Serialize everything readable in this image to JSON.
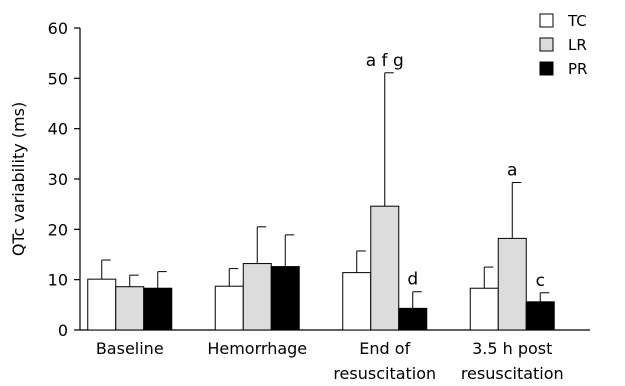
{
  "chart_data": {
    "type": "bar",
    "title": "",
    "xlabel": "",
    "ylabel": "QTc variability (ms)",
    "ylim": [
      0,
      60
    ],
    "yticks": [
      0,
      10,
      20,
      30,
      40,
      50,
      60
    ],
    "grid": false,
    "legend_position": "top-right",
    "categories": [
      [
        "Baseline"
      ],
      [
        "Hemorrhage"
      ],
      [
        "End of",
        "resuscitation"
      ],
      [
        "3.5 h post",
        "resuscitation"
      ]
    ],
    "series": [
      {
        "name": "TC",
        "color": "#ffffff",
        "values": [
          10.1,
          8.7,
          11.4,
          8.3
        ],
        "error": [
          3.8,
          3.5,
          4.3,
          4.2
        ]
      },
      {
        "name": "LR",
        "color": "#dcdcdc",
        "values": [
          8.6,
          13.2,
          24.6,
          18.2
        ],
        "error": [
          2.3,
          7.3,
          26.5,
          11.1
        ]
      },
      {
        "name": "PR",
        "color": "#000000",
        "values": [
          8.3,
          12.6,
          4.3,
          5.6
        ],
        "error": [
          3.3,
          6.3,
          3.3,
          1.8
        ]
      }
    ],
    "annotations": [
      {
        "category": 2,
        "series": 1,
        "text": "a f g"
      },
      {
        "category": 2,
        "series": 2,
        "text": "d"
      },
      {
        "category": 3,
        "series": 1,
        "text": "a"
      },
      {
        "category": 3,
        "series": 2,
        "text": "c"
      }
    ]
  }
}
